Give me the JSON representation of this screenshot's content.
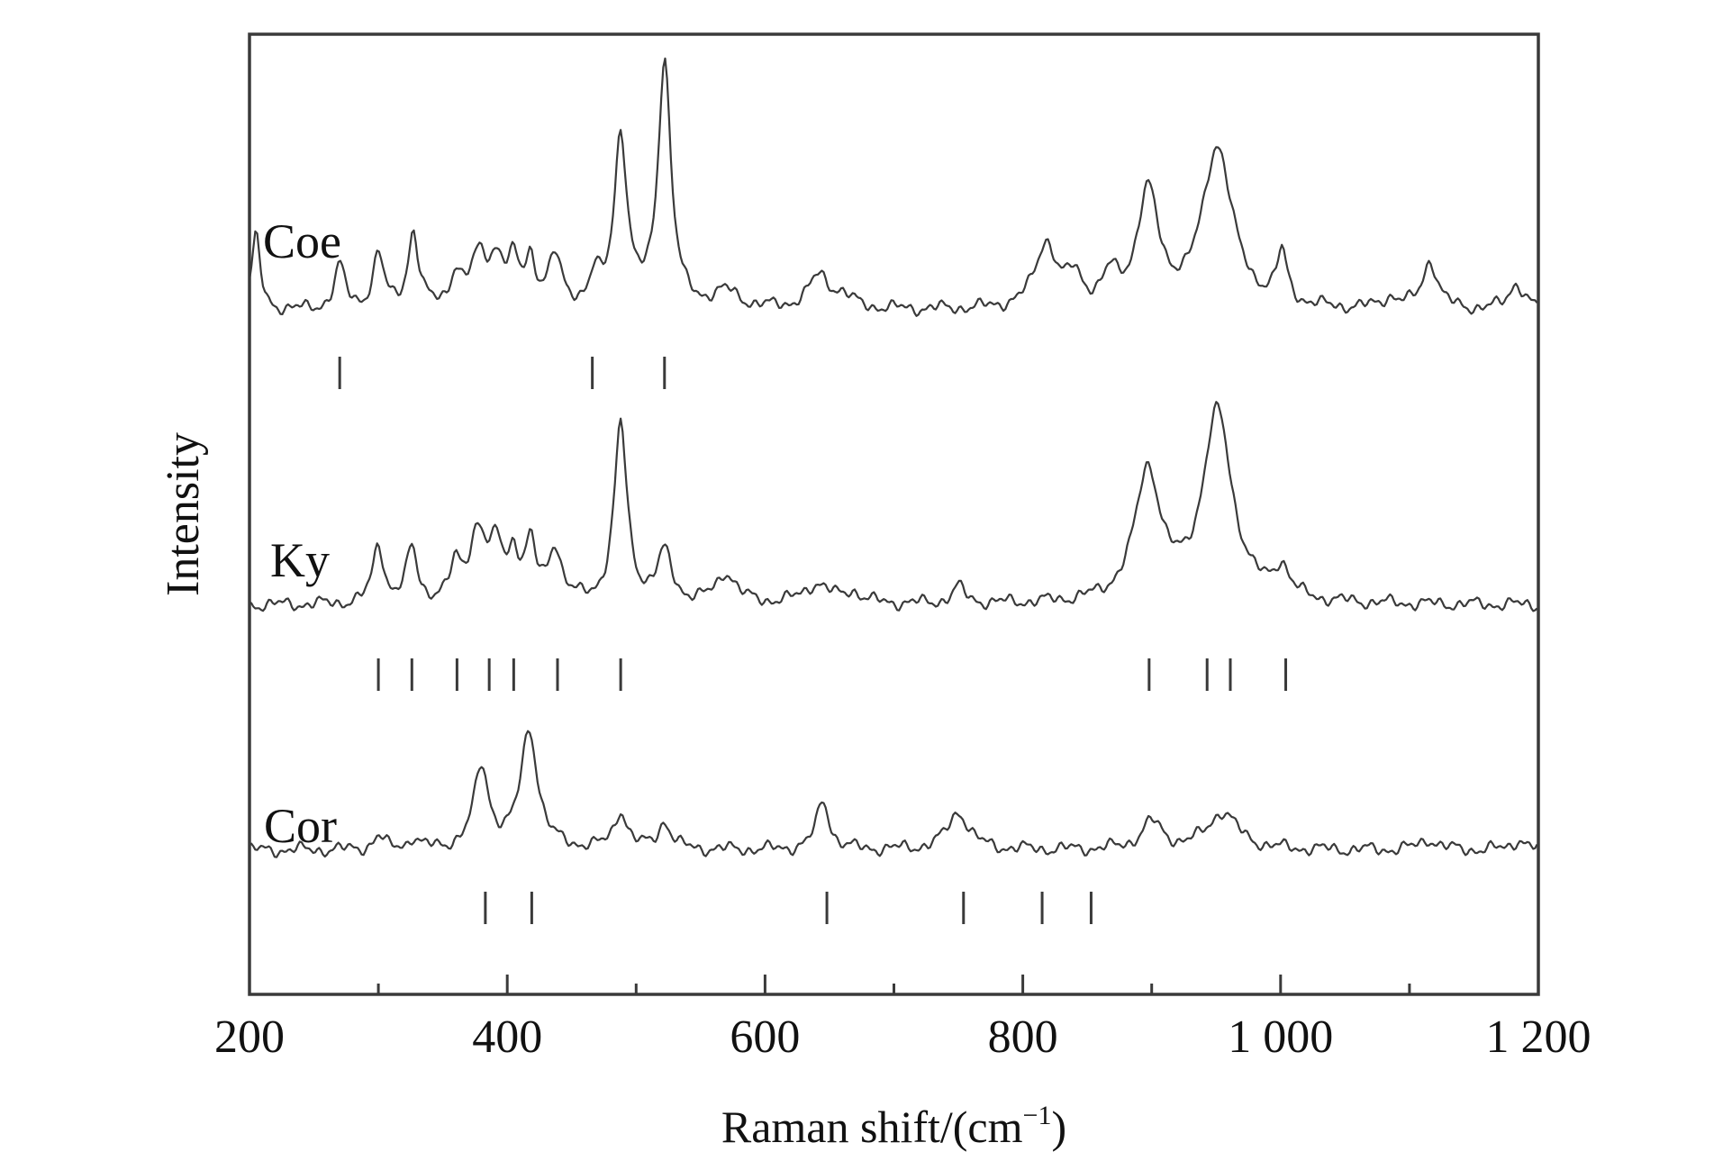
{
  "chart_data": {
    "type": "line",
    "title": "",
    "xlabel": "Raman shift/(cm",
    "xlabel_sup": "−1",
    "xlabel_close": ")",
    "ylabel": "Intensity",
    "xlim": [
      200,
      1200
    ],
    "x_ticks_major": [
      200,
      400,
      600,
      800,
      1000,
      1200
    ],
    "x_tick_labels": [
      "200",
      "400",
      "600",
      "800",
      "1 000",
      "1 200"
    ],
    "x_ticks_minor": [
      300,
      500,
      700,
      900,
      1100
    ],
    "grid": false,
    "line_color": "#3a3a3a",
    "series": [
      {
        "name": "Coe",
        "baseline": 0.08,
        "peaks": [
          {
            "x": 205,
            "h": 0.68,
            "w": 4
          },
          {
            "x": 270,
            "h": 0.4,
            "w": 5
          },
          {
            "x": 300,
            "h": 0.5,
            "w": 5
          },
          {
            "x": 327,
            "h": 0.7,
            "w": 5
          },
          {
            "x": 360,
            "h": 0.3,
            "w": 5
          },
          {
            "x": 378,
            "h": 0.45,
            "w": 8
          },
          {
            "x": 392,
            "h": 0.4,
            "w": 7
          },
          {
            "x": 405,
            "h": 0.35,
            "w": 5
          },
          {
            "x": 418,
            "h": 0.42,
            "w": 5
          },
          {
            "x": 437,
            "h": 0.45,
            "w": 6
          },
          {
            "x": 468,
            "h": 0.25,
            "w": 5
          },
          {
            "x": 488,
            "h": 1.6,
            "w": 6
          },
          {
            "x": 522,
            "h": 2.3,
            "w": 6
          },
          {
            "x": 570,
            "h": 0.15,
            "w": 12
          },
          {
            "x": 642,
            "h": 0.3,
            "w": 10
          },
          {
            "x": 660,
            "h": 0.1,
            "w": 10
          },
          {
            "x": 818,
            "h": 0.6,
            "w": 10
          },
          {
            "x": 840,
            "h": 0.25,
            "w": 7
          },
          {
            "x": 868,
            "h": 0.25,
            "w": 7
          },
          {
            "x": 897,
            "h": 1.05,
            "w": 10
          },
          {
            "x": 951,
            "h": 1.5,
            "w": 14
          },
          {
            "x": 1001,
            "h": 0.45,
            "w": 5
          },
          {
            "x": 1085,
            "h": 0.1,
            "w": 8
          },
          {
            "x": 1116,
            "h": 0.45,
            "w": 7
          },
          {
            "x": 1183,
            "h": 0.25,
            "w": 7
          }
        ],
        "ref_ticks": [
          270,
          466,
          522
        ]
      },
      {
        "name": "Ky",
        "baseline": 0.0,
        "peaks": [
          {
            "x": 300,
            "h": 0.55,
            "w": 5
          },
          {
            "x": 326,
            "h": 0.5,
            "w": 5
          },
          {
            "x": 360,
            "h": 0.3,
            "w": 5
          },
          {
            "x": 377,
            "h": 0.65,
            "w": 8
          },
          {
            "x": 392,
            "h": 0.45,
            "w": 6
          },
          {
            "x": 405,
            "h": 0.4,
            "w": 5
          },
          {
            "x": 418,
            "h": 0.5,
            "w": 5
          },
          {
            "x": 437,
            "h": 0.5,
            "w": 6
          },
          {
            "x": 488,
            "h": 1.65,
            "w": 6
          },
          {
            "x": 522,
            "h": 0.45,
            "w": 7
          },
          {
            "x": 570,
            "h": 0.28,
            "w": 9
          },
          {
            "x": 640,
            "h": 0.18,
            "w": 12
          },
          {
            "x": 668,
            "h": 0.1,
            "w": 8
          },
          {
            "x": 750,
            "h": 0.15,
            "w": 6
          },
          {
            "x": 897,
            "h": 1.2,
            "w": 12
          },
          {
            "x": 951,
            "h": 1.75,
            "w": 14
          },
          {
            "x": 1001,
            "h": 0.28,
            "w": 7
          }
        ],
        "ref_ticks": [
          300,
          326,
          361,
          386,
          405,
          439,
          488,
          898,
          943,
          961,
          1004
        ]
      },
      {
        "name": "Cor",
        "baseline": 0.0,
        "peaks": [
          {
            "x": 300,
            "h": 0.12,
            "w": 5
          },
          {
            "x": 327,
            "h": 0.1,
            "w": 5
          },
          {
            "x": 380,
            "h": 0.75,
            "w": 7
          },
          {
            "x": 417,
            "h": 1.1,
            "w": 8
          },
          {
            "x": 488,
            "h": 0.35,
            "w": 6
          },
          {
            "x": 522,
            "h": 0.25,
            "w": 6
          },
          {
            "x": 645,
            "h": 0.45,
            "w": 6
          },
          {
            "x": 750,
            "h": 0.35,
            "w": 10
          },
          {
            "x": 900,
            "h": 0.25,
            "w": 10
          },
          {
            "x": 955,
            "h": 0.35,
            "w": 14
          },
          {
            "x": 1115,
            "h": 0.1,
            "w": 8
          },
          {
            "x": 1185,
            "h": 0.1,
            "w": 6
          }
        ],
        "ref_ticks": [
          383,
          419,
          648,
          754,
          815,
          853
        ]
      }
    ]
  }
}
